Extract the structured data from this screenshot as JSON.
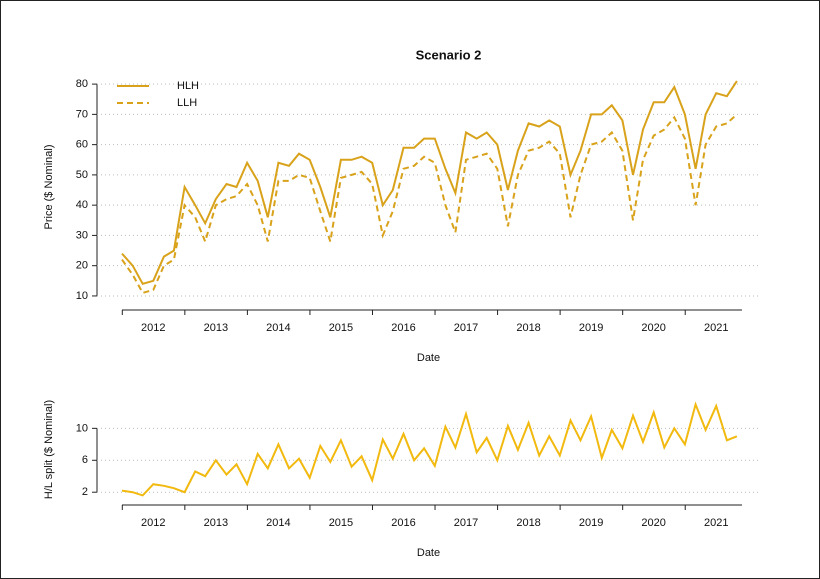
{
  "chart_data": [
    {
      "type": "line",
      "title": "Scenario 2",
      "x_label": "Date",
      "y_label": "Price ($ Nominal)",
      "x": [
        2012,
        2012.17,
        2012.33,
        2012.5,
        2012.67,
        2012.83,
        2013,
        2013.17,
        2013.33,
        2013.5,
        2013.67,
        2013.83,
        2014,
        2014.17,
        2014.33,
        2014.5,
        2014.67,
        2014.83,
        2015,
        2015.17,
        2015.33,
        2015.5,
        2015.67,
        2015.83,
        2016,
        2016.17,
        2016.33,
        2016.5,
        2016.67,
        2016.83,
        2017,
        2017.17,
        2017.33,
        2017.5,
        2017.67,
        2017.83,
        2018,
        2018.17,
        2018.33,
        2018.5,
        2018.67,
        2018.83,
        2019,
        2019.17,
        2019.33,
        2019.5,
        2019.67,
        2019.83,
        2020,
        2020.17,
        2020.33,
        2020.5,
        2020.67,
        2020.83,
        2021,
        2021.17,
        2021.33,
        2021.5,
        2021.67,
        2021.83
      ],
      "series": [
        {
          "name": "HLH",
          "color": "#d9a21b",
          "line_style": "solid",
          "values": [
            24,
            20,
            14,
            15,
            23,
            25,
            46,
            40,
            34,
            42,
            47,
            46,
            54,
            48,
            36,
            54,
            53,
            57,
            55,
            46,
            36,
            55,
            55,
            56,
            54,
            40,
            45,
            59,
            59,
            62,
            62,
            52,
            44,
            64,
            62,
            64,
            60,
            45,
            58,
            67,
            66,
            68,
            66,
            50,
            58,
            70,
            70,
            73,
            68,
            50,
            65,
            74,
            74,
            79,
            70,
            52,
            70,
            77,
            76,
            81
          ]
        },
        {
          "name": "LLH",
          "color": "#d9a21b",
          "line_style": "dashed",
          "values": [
            22,
            17,
            11,
            12,
            20,
            22,
            40,
            36,
            28,
            40,
            42,
            43,
            47,
            40,
            28,
            48,
            48,
            50,
            49,
            38,
            28,
            49,
            50,
            51,
            47,
            30,
            38,
            52,
            53,
            56,
            54,
            40,
            31,
            55,
            56,
            57,
            52,
            33,
            50,
            58,
            59,
            61,
            57,
            36,
            50,
            60,
            61,
            64,
            58,
            35,
            55,
            63,
            65,
            69,
            62,
            40,
            60,
            66,
            67,
            70
          ]
        }
      ],
      "xlim": [
        2011.6,
        2022.2
      ],
      "xticks": [
        {
          "value": 2012.5,
          "label": "2012"
        },
        {
          "value": 2013.5,
          "label": "2013"
        },
        {
          "value": 2014.5,
          "label": "2014"
        },
        {
          "value": 2015.5,
          "label": "2015"
        },
        {
          "value": 2016.5,
          "label": "2016"
        },
        {
          "value": 2017.5,
          "label": "2017"
        },
        {
          "value": 2018.5,
          "label": "2018"
        },
        {
          "value": 2019.5,
          "label": "2019"
        },
        {
          "value": 2020.5,
          "label": "2020"
        },
        {
          "value": 2021.5,
          "label": "2021"
        }
      ],
      "ylim": [
        8,
        84
      ],
      "yticks": [
        10,
        20,
        30,
        40,
        50,
        60,
        70,
        80
      ],
      "grid": true,
      "legend": "top-left"
    },
    {
      "type": "line",
      "x_label": "Date",
      "y_label": "H/L split ($ Nominal)",
      "x": [
        2012,
        2012.17,
        2012.33,
        2012.5,
        2012.67,
        2012.83,
        2013,
        2013.17,
        2013.33,
        2013.5,
        2013.67,
        2013.83,
        2014,
        2014.17,
        2014.33,
        2014.5,
        2014.67,
        2014.83,
        2015,
        2015.17,
        2015.33,
        2015.5,
        2015.67,
        2015.83,
        2016,
        2016.17,
        2016.33,
        2016.5,
        2016.67,
        2016.83,
        2017,
        2017.17,
        2017.33,
        2017.5,
        2017.67,
        2017.83,
        2018,
        2018.17,
        2018.33,
        2018.5,
        2018.67,
        2018.83,
        2019,
        2019.17,
        2019.33,
        2019.5,
        2019.67,
        2019.83,
        2020,
        2020.17,
        2020.33,
        2020.5,
        2020.67,
        2020.83,
        2021,
        2021.17,
        2021.33,
        2021.5,
        2021.67,
        2021.83
      ],
      "series": [
        {
          "color": "#f2b90f",
          "line_style": "solid",
          "values": [
            2.2,
            2.0,
            1.6,
            3.0,
            2.8,
            2.5,
            2.0,
            4.6,
            4.0,
            6.0,
            4.2,
            5.5,
            3.0,
            6.8,
            5.0,
            8.0,
            5.0,
            6.2,
            3.8,
            7.8,
            5.8,
            8.5,
            5.2,
            6.5,
            3.5,
            8.6,
            6.2,
            9.3,
            6.0,
            7.5,
            5.3,
            10.2,
            7.6,
            11.8,
            7.0,
            8.8,
            6.0,
            10.3,
            7.3,
            10.7,
            6.6,
            9.0,
            6.6,
            11.0,
            8.5,
            11.5,
            6.3,
            9.8,
            7.5,
            11.6,
            8.3,
            12.0,
            7.6,
            10.0,
            8.0,
            13.0,
            9.8,
            12.8,
            8.5,
            9.0
          ]
        }
      ],
      "xlim": [
        2011.6,
        2022.2
      ],
      "xticks": [
        {
          "value": 2012.5,
          "label": "2012"
        },
        {
          "value": 2013.5,
          "label": "2013"
        },
        {
          "value": 2014.5,
          "label": "2014"
        },
        {
          "value": 2015.5,
          "label": "2015"
        },
        {
          "value": 2016.5,
          "label": "2016"
        },
        {
          "value": 2017.5,
          "label": "2017"
        },
        {
          "value": 2018.5,
          "label": "2018"
        },
        {
          "value": 2019.5,
          "label": "2019"
        },
        {
          "value": 2020.5,
          "label": "2020"
        },
        {
          "value": 2021.5,
          "label": "2021"
        }
      ],
      "ylim": [
        1.4,
        13.3
      ],
      "yticks": [
        2,
        6,
        10
      ],
      "grid": true
    }
  ]
}
